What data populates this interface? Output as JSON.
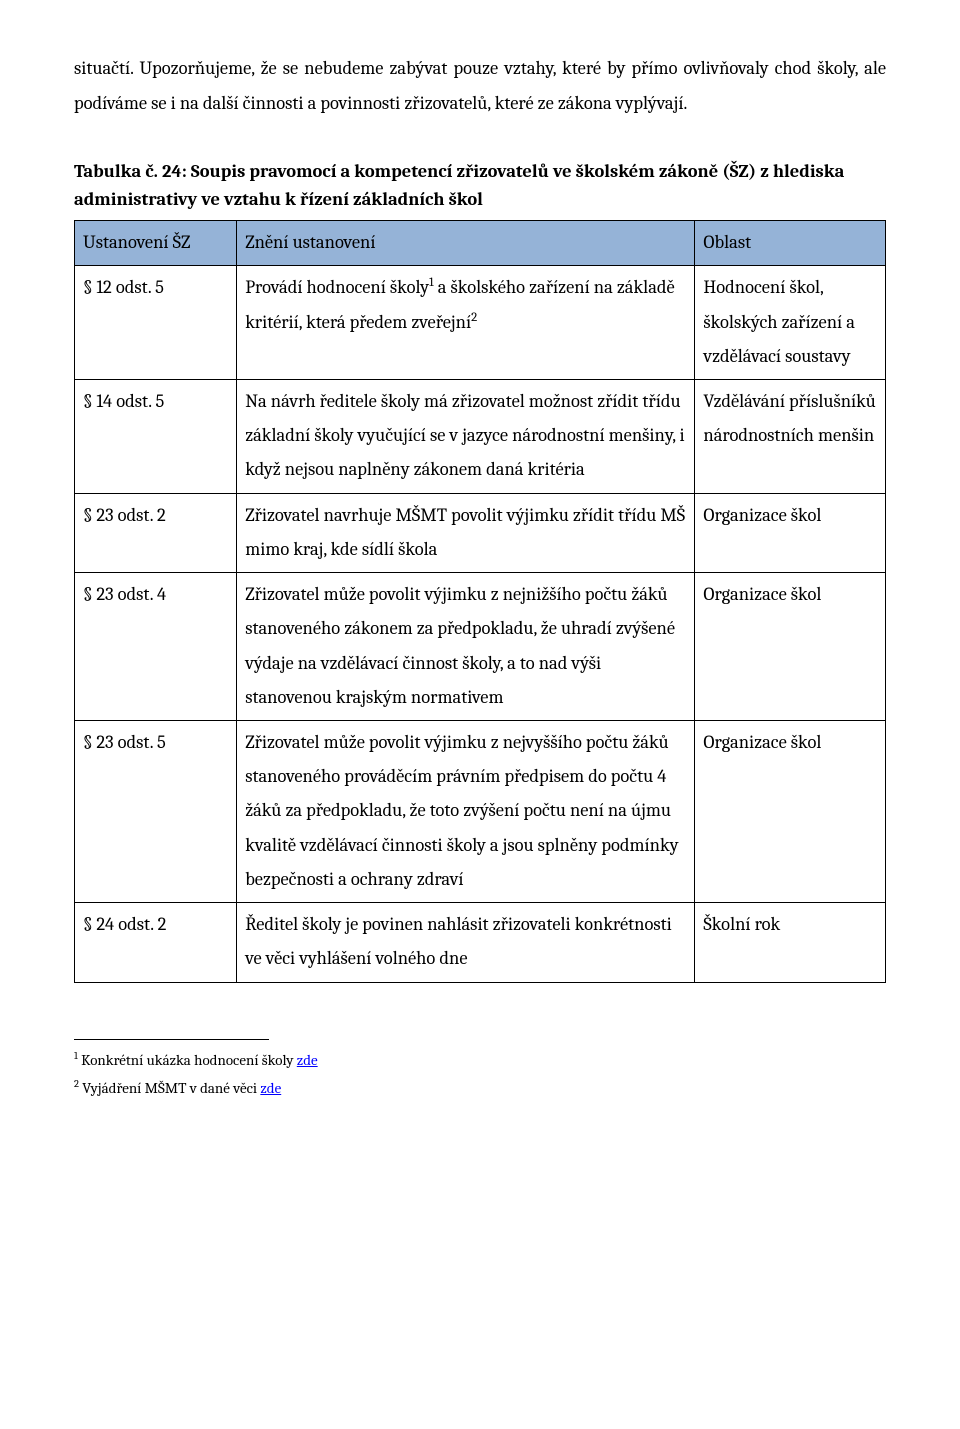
{
  "intro": "situačtí. Upozorňujeme, že se nebudeme zabývat pouze vztahy, které by přímo ovlivňovaly chod školy, ale podíváme se i na další činnosti a povinnosti zřizovatelů, které ze zákona vyplývají.",
  "caption": "Tabulka č. 24: Soupis pravomocí a kompetencí zřizovatelů ve školském zákoně (ŠZ) z hlediska administrativy ve vztahu k řízení základních škol",
  "header": {
    "c1": "Ustanovení ŠZ",
    "c2": "Znění ustanovení",
    "c3": "Oblast"
  },
  "rows": [
    {
      "c1": "§ 12 odst. 5",
      "c2_pre": "Provádí hodnocení školy",
      "c2_sup1": "1",
      "c2_mid": " a školského zařízení na základě kritérií, která předem zveřejní",
      "c2_sup2": "2",
      "c3": "Hodnocení škol, školských zařízení a vzdělávací soustavy"
    },
    {
      "c1": "§ 14 odst. 5",
      "c2": "Na návrh ředitele školy má zřizovatel možnost zřídit třídu základní školy vyučující se v jazyce národnostní menšiny, i když nejsou naplněny zákonem daná kritéria",
      "c3": "Vzdělávání příslušníků národnostních menšin"
    },
    {
      "c1": "§ 23 odst. 2",
      "c2": "Zřizovatel navrhuje MŠMT povolit výjimku zřídit třídu MŠ mimo kraj, kde sídlí škola",
      "c3": "Organizace škol"
    },
    {
      "c1": "§ 23 odst. 4",
      "c2": "Zřizovatel může povolit výjimku z nejnižšího počtu žáků stanoveného zákonem za předpokladu, že uhradí zvýšené výdaje na vzdělávací činnost školy, a to nad výši stanovenou krajským normativem",
      "c3": "Organizace škol"
    },
    {
      "c1": "§ 23 odst. 5",
      "c2": "Zřizovatel může povolit výjimku z nejvyššího počtu žáků stanoveného prováděcím právním předpisem do počtu 4 žáků za předpokladu, že toto zvýšení počtu není na újmu kvalitě vzdělávací činnosti školy a jsou splněny podmínky bezpečnosti a ochrany zdraví",
      "c3": "Organizace škol"
    },
    {
      "c1": "§ 24 odst. 2",
      "c2": "Ředitel školy je povinen nahlásit zřizovateli konkrétnosti ve věci vyhlášení volného dne",
      "c3": "Školní rok"
    }
  ],
  "footnotes": {
    "f1_sup": "1",
    "f1_text": " Konkrétní ukázka hodnocení školy ",
    "f1_link": "zde",
    "f2_sup": "2",
    "f2_text": " Vyjádření MŠMT v dané věci ",
    "f2_link": "zde"
  },
  "colors": {
    "header_bg": "#95b3d7",
    "border": "#000000",
    "text": "#000000",
    "link": "#0000ff"
  }
}
